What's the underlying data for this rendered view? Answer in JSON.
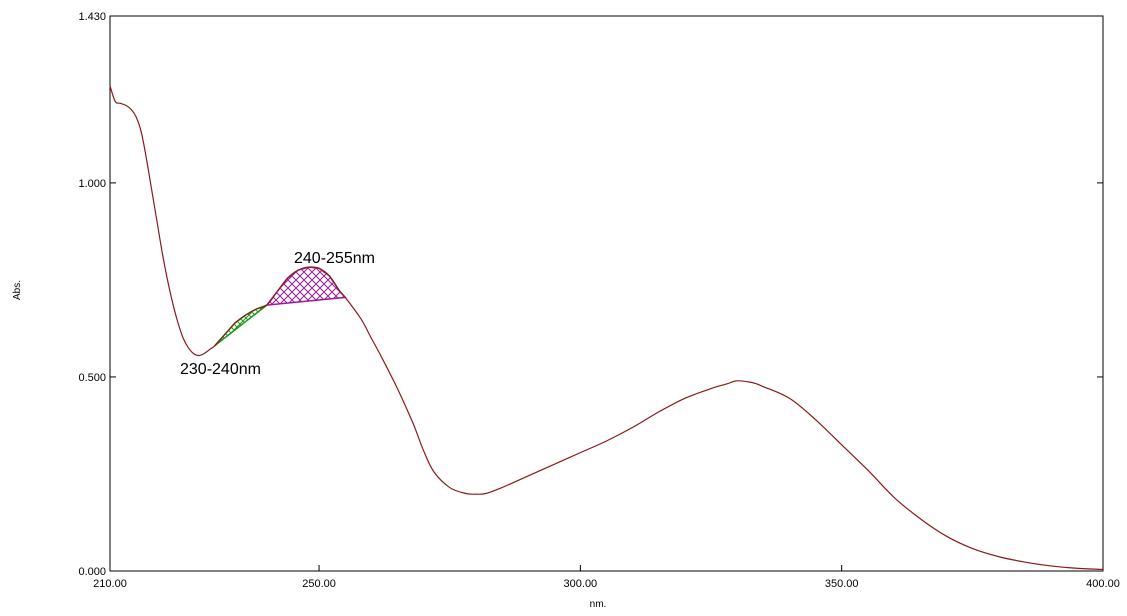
{
  "chart_data": {
    "type": "line",
    "title": "",
    "xlabel": "nm.",
    "ylabel": "Abs.",
    "xlim": [
      210,
      400
    ],
    "ylim": [
      0,
      1.43
    ],
    "x_ticks": [
      210,
      250,
      300,
      350,
      400
    ],
    "x_tick_labels": [
      "210.00",
      "250.00",
      "300.00",
      "350.00",
      "400.00"
    ],
    "y_ticks": [
      0,
      0.5,
      1.0,
      1.43
    ],
    "y_tick_labels": [
      "0.000",
      "0.500",
      "1.000",
      "1.430"
    ],
    "grid": false,
    "colors": {
      "spectrum": "#8b1a1a",
      "region_230_240": "#1a9a1a",
      "region_240_255": "#9a1a9a",
      "frame": "#000000"
    },
    "series": [
      {
        "x": [
          210,
          211,
          212,
          213,
          214,
          215,
          216,
          217,
          218,
          219,
          220,
          221,
          222,
          223,
          224,
          225,
          226,
          227,
          228,
          229,
          230,
          232,
          234,
          236,
          238,
          240,
          242,
          244,
          246,
          248,
          250,
          252,
          254,
          255,
          258,
          260,
          262,
          265,
          268,
          270,
          272,
          275,
          278,
          280,
          282,
          285,
          290,
          295,
          300,
          305,
          310,
          315,
          320,
          325,
          328,
          330,
          333,
          335,
          340,
          345,
          350,
          355,
          360,
          365,
          370,
          375,
          380,
          385,
          390,
          395,
          400
        ],
        "y": [
          1.25,
          1.21,
          1.205,
          1.2,
          1.19,
          1.17,
          1.13,
          1.06,
          0.98,
          0.9,
          0.82,
          0.75,
          0.69,
          0.64,
          0.6,
          0.575,
          0.56,
          0.555,
          0.56,
          0.57,
          0.58,
          0.61,
          0.64,
          0.66,
          0.675,
          0.685,
          0.72,
          0.755,
          0.775,
          0.783,
          0.78,
          0.76,
          0.72,
          0.705,
          0.65,
          0.6,
          0.55,
          0.47,
          0.38,
          0.31,
          0.255,
          0.215,
          0.2,
          0.198,
          0.2,
          0.215,
          0.245,
          0.275,
          0.305,
          0.335,
          0.37,
          0.41,
          0.445,
          0.47,
          0.482,
          0.49,
          0.485,
          0.475,
          0.445,
          0.39,
          0.325,
          0.26,
          0.19,
          0.135,
          0.09,
          0.058,
          0.037,
          0.023,
          0.013,
          0.007,
          0.004
        ]
      }
    ],
    "annotations": [
      {
        "text": "230-240nm",
        "x_range": [
          230,
          240
        ]
      },
      {
        "text": "240-255nm",
        "x_range": [
          240,
          255
        ]
      }
    ]
  }
}
